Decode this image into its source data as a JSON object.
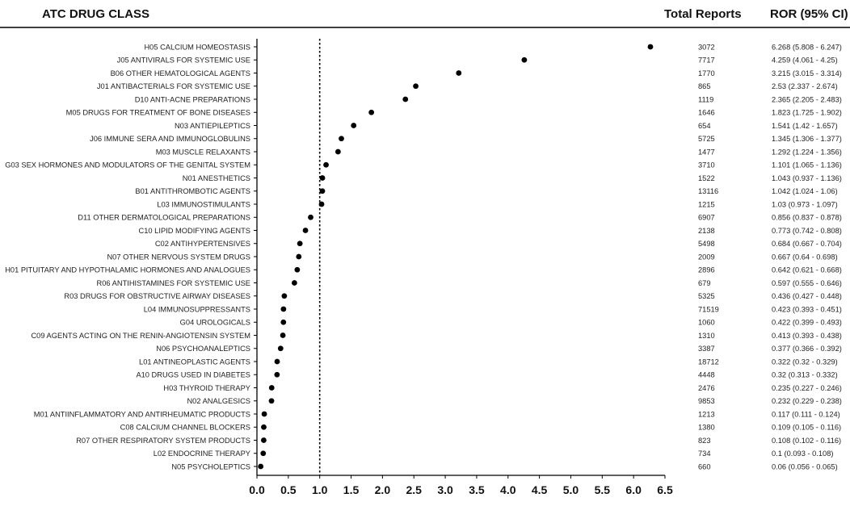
{
  "headers": {
    "class": "ATC DRUG CLASS",
    "reports": "Total Reports",
    "ror": "ROR (95% CI)"
  },
  "colors": {
    "point": "#000000",
    "axis": "#000000",
    "reference": "#000000"
  },
  "chart_data": {
    "type": "scatter",
    "reference_line": 1.0,
    "xlim": [
      0,
      6.5
    ],
    "xticks": [
      "0.0",
      "0.5",
      "1.0",
      "1.5",
      "2.0",
      "2.5",
      "3.0",
      "3.5",
      "4.0",
      "4.5",
      "5.0",
      "5.5",
      "6.0",
      "6.5"
    ],
    "rows": [
      {
        "label": "H05 CALCIUM HOMEOSTASIS",
        "reports": "3072",
        "ror": 6.268,
        "ror_text": "6.268 (5.808 - 6.247)"
      },
      {
        "label": "J05 ANTIVIRALS FOR SYSTEMIC USE",
        "reports": "7717",
        "ror": 4.259,
        "ror_text": "4.259 (4.061 - 4.25)"
      },
      {
        "label": "B06 OTHER HEMATOLOGICAL AGENTS",
        "reports": "1770",
        "ror": 3.215,
        "ror_text": "3.215 (3.015 - 3.314)"
      },
      {
        "label": "J01 ANTIBACTERIALS FOR SYSTEMIC USE",
        "reports": "865",
        "ror": 2.53,
        "ror_text": "2.53 (2.337 - 2.674)"
      },
      {
        "label": "D10 ANTI-ACNE PREPARATIONS",
        "reports": "1119",
        "ror": 2.365,
        "ror_text": "2.365 (2.205 - 2.483)"
      },
      {
        "label": "M05 DRUGS FOR TREATMENT OF BONE DISEASES",
        "reports": "1646",
        "ror": 1.823,
        "ror_text": "1.823 (1.725 - 1.902)"
      },
      {
        "label": "N03 ANTIEPILEPTICS",
        "reports": "654",
        "ror": 1.541,
        "ror_text": "1.541 (1.42 - 1.657)"
      },
      {
        "label": "J06 IMMUNE SERA AND IMMUNOGLOBULINS",
        "reports": "5725",
        "ror": 1.345,
        "ror_text": "1.345 (1.306 - 1.377)"
      },
      {
        "label": "M03 MUSCLE RELAXANTS",
        "reports": "1477",
        "ror": 1.292,
        "ror_text": "1.292 (1.224 - 1.356)"
      },
      {
        "label": "G03 SEX HORMONES AND MODULATORS OF THE GENITAL SYSTEM",
        "reports": "3710",
        "ror": 1.101,
        "ror_text": "1.101 (1.065 - 1.136)"
      },
      {
        "label": "N01 ANESTHETICS",
        "reports": "1522",
        "ror": 1.043,
        "ror_text": "1.043 (0.937 - 1.136)"
      },
      {
        "label": "B01 ANTITHROMBOTIC AGENTS",
        "reports": "13116",
        "ror": 1.042,
        "ror_text": "1.042 (1.024 - 1.06)"
      },
      {
        "label": "L03 IMMUNOSTIMULANTS",
        "reports": "1215",
        "ror": 1.03,
        "ror_text": "1.03 (0.973 - 1.097)"
      },
      {
        "label": "D11 OTHER DERMATOLOGICAL PREPARATIONS",
        "reports": "6907",
        "ror": 0.856,
        "ror_text": "0.856 (0.837 - 0.878)"
      },
      {
        "label": "C10 LIPID MODIFYING AGENTS",
        "reports": "2138",
        "ror": 0.773,
        "ror_text": "0.773 (0.742 - 0.808)"
      },
      {
        "label": "C02 ANTIHYPERTENSIVES",
        "reports": "5498",
        "ror": 0.684,
        "ror_text": "0.684 (0.667 - 0.704)"
      },
      {
        "label": "N07 OTHER NERVOUS SYSTEM DRUGS",
        "reports": "2009",
        "ror": 0.667,
        "ror_text": "0.667 (0.64 - 0.698)"
      },
      {
        "label": "H01 PITUITARY AND HYPOTHALAMIC HORMONES AND ANALOGUES",
        "reports": "2896",
        "ror": 0.642,
        "ror_text": "0.642 (0.621 - 0.668)"
      },
      {
        "label": "R06 ANTIHISTAMINES FOR SYSTEMIC USE",
        "reports": "679",
        "ror": 0.597,
        "ror_text": "0.597 (0.555 - 0.646)"
      },
      {
        "label": "R03 DRUGS FOR OBSTRUCTIVE AIRWAY DISEASES",
        "reports": "5325",
        "ror": 0.436,
        "ror_text": "0.436 (0.427 - 0.448)"
      },
      {
        "label": "L04 IMMUNOSUPPRESSANTS",
        "reports": "71519",
        "ror": 0.423,
        "ror_text": "0.423 (0.393 - 0.451)"
      },
      {
        "label": "G04 UROLOGICALS",
        "reports": "1060",
        "ror": 0.422,
        "ror_text": "0.422 (0.399 - 0.493)"
      },
      {
        "label": "C09 AGENTS ACTING ON THE RENIN-ANGIOTENSIN SYSTEM",
        "reports": "1310",
        "ror": 0.413,
        "ror_text": "0.413 (0.393 - 0.438)"
      },
      {
        "label": "N06 PSYCHOANALEPTICS",
        "reports": "3387",
        "ror": 0.377,
        "ror_text": "0.377 (0.366 - 0.392)"
      },
      {
        "label": "L01 ANTINEOPLASTIC AGENTS",
        "reports": "18712",
        "ror": 0.322,
        "ror_text": "0.322 (0.32 - 0.329)"
      },
      {
        "label": "A10 DRUGS USED IN DIABETES",
        "reports": "4448",
        "ror": 0.32,
        "ror_text": "0.32 (0.313 - 0.332)"
      },
      {
        "label": "H03 THYROID THERAPY",
        "reports": "2476",
        "ror": 0.235,
        "ror_text": "0.235 (0.227 - 0.246)"
      },
      {
        "label": "N02 ANALGESICS",
        "reports": "9853",
        "ror": 0.232,
        "ror_text": "0.232 (0.229 - 0.238)"
      },
      {
        "label": "M01 ANTIINFLAMMATORY AND ANTIRHEUMATIC PRODUCTS",
        "reports": "1213",
        "ror": 0.117,
        "ror_text": "0.117 (0.111 - 0.124)"
      },
      {
        "label": "C08 CALCIUM CHANNEL BLOCKERS",
        "reports": "1380",
        "ror": 0.109,
        "ror_text": "0.109 (0.105 - 0.116)"
      },
      {
        "label": "R07 OTHER RESPIRATORY SYSTEM PRODUCTS",
        "reports": "823",
        "ror": 0.108,
        "ror_text": "0.108 (0.102 - 0.116)"
      },
      {
        "label": "L02 ENDOCRINE THERAPY",
        "reports": "734",
        "ror": 0.1,
        "ror_text": "0.1 (0.093 - 0.108)"
      },
      {
        "label": "N05 PSYCHOLEPTICS",
        "reports": "660",
        "ror": 0.06,
        "ror_text": "0.06 (0.056 - 0.065)"
      }
    ]
  }
}
